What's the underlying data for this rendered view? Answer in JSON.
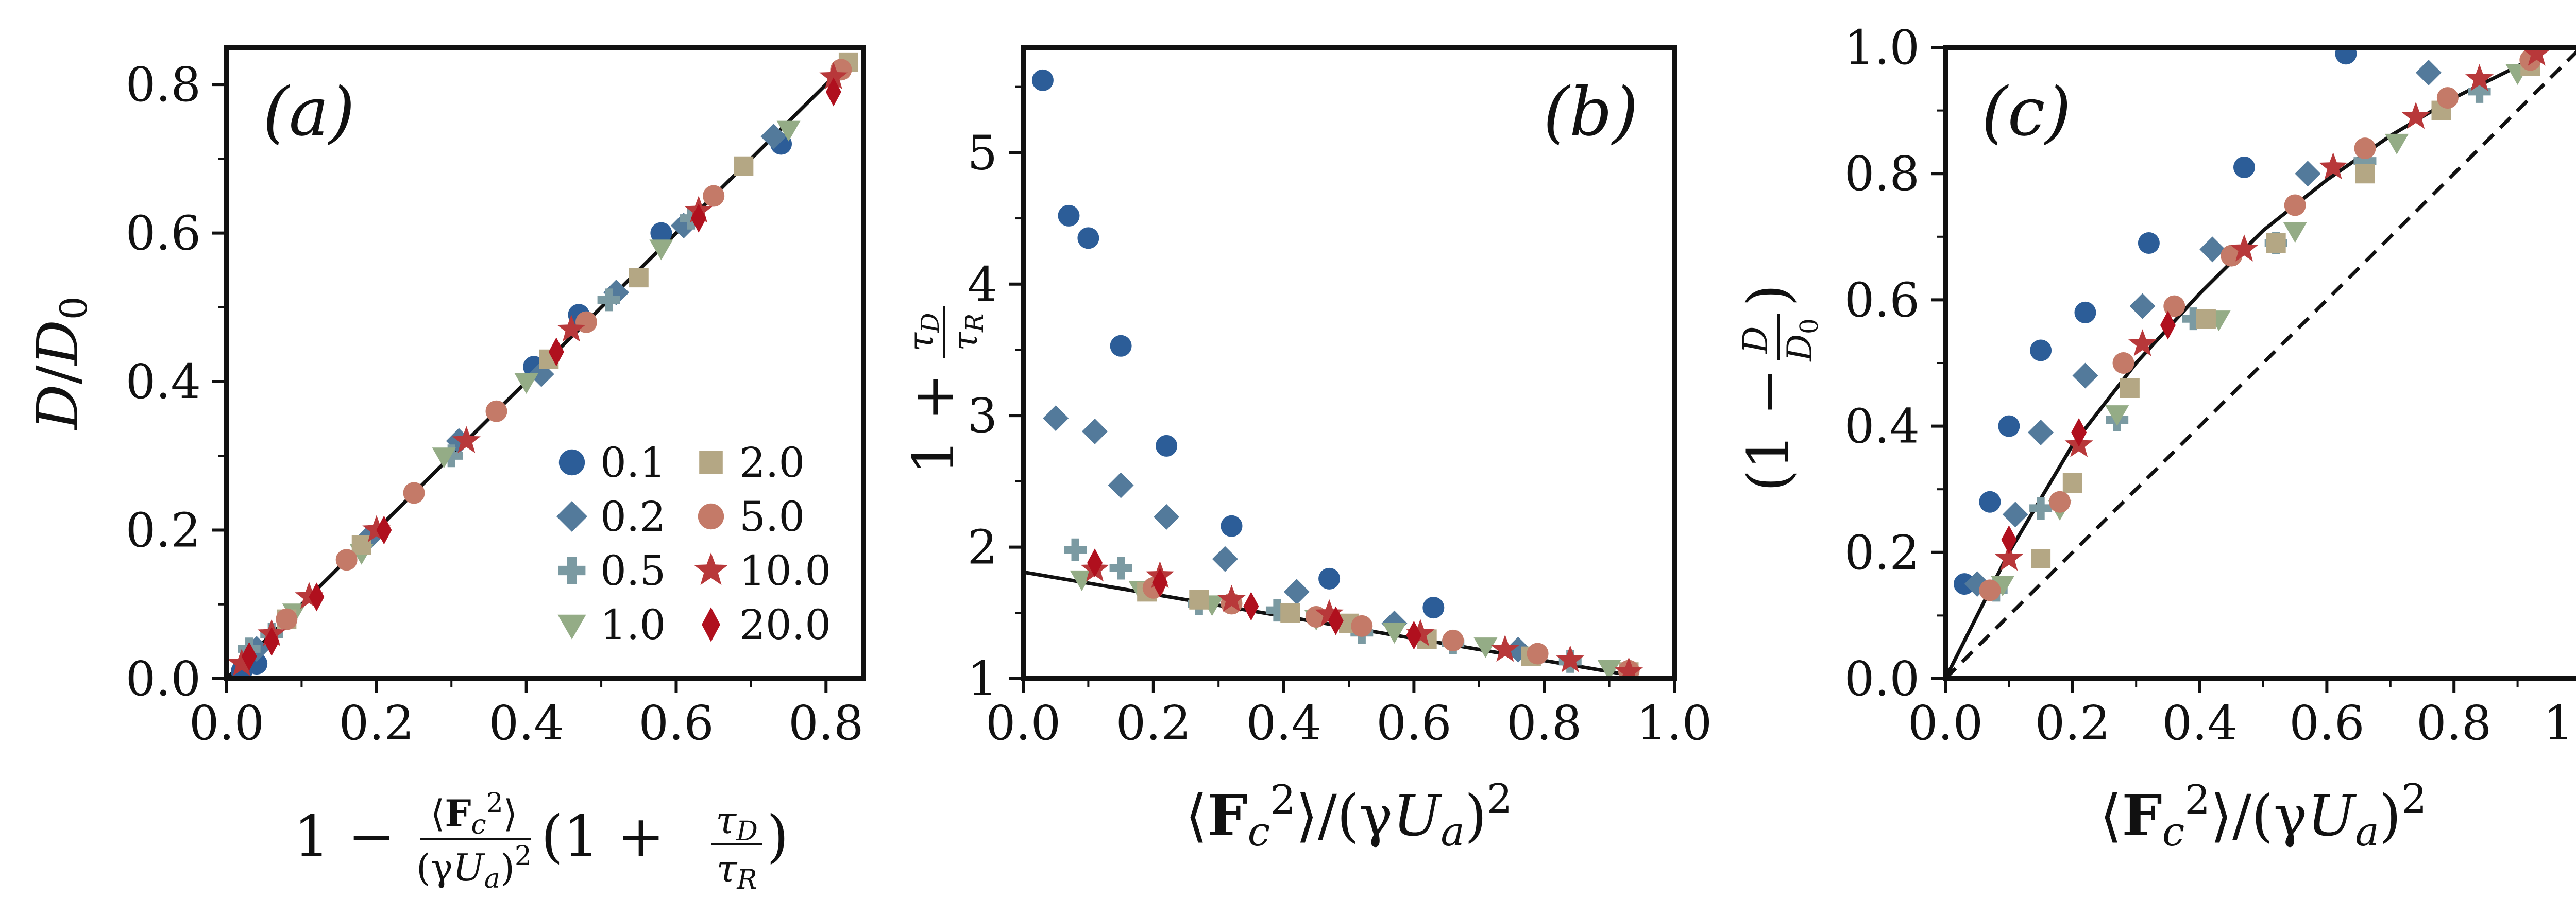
{
  "colors": {
    "0.1": "#2c5d98",
    "0.2": "#537a9b",
    "0.5": "#7b9aa2",
    "1.0": "#94ac86",
    "2.0": "#b4a784",
    "5.0": "#c47a68",
    "10.0": "#b8383a",
    "20.0": "#b0101e"
  },
  "markers": {
    "0.1": "circle",
    "0.2": "diamond",
    "0.5": "plus",
    "1.0": "triangle-down",
    "2.0": "square",
    "5.0": "circle",
    "10.0": "star",
    "20.0": "thin-diamond"
  },
  "legend": {
    "items": [
      {
        "key": "0.1",
        "label": "0.1"
      },
      {
        "key": "0.2",
        "label": "0.2"
      },
      {
        "key": "0.5",
        "label": "0.5"
      },
      {
        "key": "1.0",
        "label": "1.0"
      },
      {
        "key": "2.0",
        "label": "2.0"
      },
      {
        "key": "5.0",
        "label": "5.0"
      },
      {
        "key": "10.0",
        "label": "10.0"
      },
      {
        "key": "20.0",
        "label": "20.0"
      }
    ]
  },
  "chart_data": [
    {
      "type": "scatter",
      "panel_label": "(a)",
      "xlabel": "1 − ⟨F_c²⟩/(γU_a)² (1 + τ_D/τ_R)",
      "ylabel": "D/D₀",
      "xlim": [
        0.0,
        0.85
      ],
      "ylim": [
        0.0,
        0.85
      ],
      "xticks": [
        "0.0",
        "0.2",
        "0.4",
        "0.6",
        "0.8"
      ],
      "yticks": [
        "0.0",
        "0.2",
        "0.4",
        "0.6",
        "0.8"
      ],
      "lines": [
        {
          "style": "solid",
          "x": [
            0.0,
            0.83
          ],
          "y": [
            0.0,
            0.83
          ]
        }
      ],
      "legend_position": "lower-right",
      "series": [
        {
          "name": "0.1",
          "x": [
            0.02,
            0.04,
            0.41,
            0.47,
            0.58,
            0.74
          ],
          "y": [
            0.01,
            0.02,
            0.42,
            0.49,
            0.6,
            0.72
          ]
        },
        {
          "name": "0.2",
          "x": [
            0.04,
            0.19,
            0.31,
            0.42,
            0.52,
            0.61,
            0.73
          ],
          "y": [
            0.04,
            0.19,
            0.32,
            0.41,
            0.52,
            0.61,
            0.73
          ]
        },
        {
          "name": "0.5",
          "x": [
            0.03,
            0.06,
            0.3,
            0.51,
            0.62
          ],
          "y": [
            0.04,
            0.06,
            0.3,
            0.51,
            0.62
          ]
        },
        {
          "name": "1.0",
          "x": [
            0.09,
            0.18,
            0.29,
            0.4,
            0.58,
            0.75
          ],
          "y": [
            0.09,
            0.17,
            0.3,
            0.4,
            0.58,
            0.74
          ]
        },
        {
          "name": "2.0",
          "x": [
            0.08,
            0.18,
            0.43,
            0.55,
            0.69,
            0.83
          ],
          "y": [
            0.08,
            0.18,
            0.43,
            0.54,
            0.69,
            0.83
          ]
        },
        {
          "name": "5.0",
          "x": [
            0.08,
            0.16,
            0.25,
            0.36,
            0.48,
            0.65,
            0.82
          ],
          "y": [
            0.08,
            0.16,
            0.25,
            0.36,
            0.48,
            0.65,
            0.82
          ]
        },
        {
          "name": "10.0",
          "x": [
            0.02,
            0.06,
            0.11,
            0.2,
            0.32,
            0.46,
            0.63,
            0.81
          ],
          "y": [
            0.02,
            0.06,
            0.11,
            0.2,
            0.32,
            0.47,
            0.63,
            0.81
          ]
        },
        {
          "name": "20.0",
          "x": [
            0.03,
            0.06,
            0.12,
            0.21,
            0.44,
            0.63,
            0.81
          ],
          "y": [
            0.03,
            0.05,
            0.11,
            0.2,
            0.44,
            0.62,
            0.79
          ]
        }
      ]
    },
    {
      "type": "scatter",
      "panel_label": "(b)",
      "xlabel": "⟨F_c²⟩/(γU_a)²",
      "ylabel": "1 + τ_D/τ_R",
      "xlim": [
        0.0,
        1.0
      ],
      "ylim": [
        1.0,
        5.8
      ],
      "xticks": [
        "0.0",
        "0.2",
        "0.4",
        "0.6",
        "0.8",
        "1.0"
      ],
      "yticks": [
        "1",
        "2",
        "3",
        "4",
        "5"
      ],
      "lines": [
        {
          "style": "solid",
          "x": [
            0.0,
            0.94
          ],
          "y": [
            1.81,
            1.02
          ]
        }
      ],
      "series": [
        {
          "name": "0.1",
          "x": [
            0.03,
            0.07,
            0.1,
            0.15,
            0.22,
            0.32,
            0.47,
            0.63
          ],
          "y": [
            5.55,
            4.52,
            4.35,
            3.53,
            2.77,
            2.16,
            1.76,
            1.54
          ]
        },
        {
          "name": "0.2",
          "x": [
            0.05,
            0.11,
            0.15,
            0.22,
            0.31,
            0.42,
            0.57,
            0.76
          ],
          "y": [
            2.98,
            2.88,
            2.47,
            2.23,
            1.91,
            1.66,
            1.42,
            1.22
          ]
        },
        {
          "name": "0.5",
          "x": [
            0.08,
            0.15,
            0.27,
            0.39,
            0.52,
            0.66,
            0.84
          ],
          "y": [
            1.98,
            1.84,
            1.57,
            1.52,
            1.35,
            1.27,
            1.13
          ]
        },
        {
          "name": "1.0",
          "x": [
            0.09,
            0.18,
            0.29,
            0.45,
            0.57,
            0.71,
            0.9
          ],
          "y": [
            1.76,
            1.68,
            1.57,
            1.46,
            1.36,
            1.25,
            1.08
          ]
        },
        {
          "name": "2.0",
          "x": [
            0.19,
            0.27,
            0.41,
            0.5,
            0.62,
            0.78,
            0.93
          ],
          "y": [
            1.66,
            1.6,
            1.5,
            1.42,
            1.3,
            1.17,
            1.05
          ]
        },
        {
          "name": "5.0",
          "x": [
            0.2,
            0.32,
            0.45,
            0.52,
            0.66,
            0.79,
            0.93
          ],
          "y": [
            1.69,
            1.57,
            1.47,
            1.4,
            1.29,
            1.19,
            1.06
          ]
        },
        {
          "name": "10.0",
          "x": [
            0.11,
            0.21,
            0.32,
            0.47,
            0.61,
            0.74,
            0.84,
            0.93
          ],
          "y": [
            1.83,
            1.78,
            1.6,
            1.49,
            1.34,
            1.22,
            1.14,
            1.05
          ]
        },
        {
          "name": "20.0",
          "x": [
            0.11,
            0.21,
            0.35,
            0.48,
            0.6
          ],
          "y": [
            1.88,
            1.73,
            1.55,
            1.44,
            1.33
          ]
        }
      ]
    },
    {
      "type": "scatter",
      "panel_label": "(c)",
      "xlabel": "⟨F_c²⟩/(γU_a)²",
      "ylabel": "(1 − D/D₀)",
      "xlim": [
        0.0,
        1.0
      ],
      "ylim": [
        0.0,
        1.0
      ],
      "xticks": [
        "0.0",
        "0.2",
        "0.4",
        "0.6",
        "0.8",
        "1.0"
      ],
      "yticks": [
        "0.0",
        "0.2",
        "0.4",
        "0.6",
        "0.8",
        "1.0"
      ],
      "lines": [
        {
          "style": "solid",
          "x": [
            0.0,
            0.1,
            0.2,
            0.3,
            0.4,
            0.5,
            0.6,
            0.7,
            0.8,
            0.9,
            0.95
          ],
          "y": [
            0.0,
            0.2,
            0.37,
            0.5,
            0.61,
            0.71,
            0.79,
            0.86,
            0.92,
            0.97,
            1.0
          ]
        },
        {
          "style": "dashed",
          "x": [
            0.0,
            1.0
          ],
          "y": [
            0.0,
            1.0
          ]
        }
      ],
      "series": [
        {
          "name": "0.1",
          "x": [
            0.03,
            0.07,
            0.1,
            0.15,
            0.22,
            0.32,
            0.47,
            0.63
          ],
          "y": [
            0.15,
            0.28,
            0.4,
            0.52,
            0.58,
            0.69,
            0.81,
            0.99
          ]
        },
        {
          "name": "0.2",
          "x": [
            0.05,
            0.11,
            0.15,
            0.22,
            0.31,
            0.42,
            0.57,
            0.76
          ],
          "y": [
            0.15,
            0.26,
            0.39,
            0.48,
            0.59,
            0.68,
            0.8,
            0.96
          ]
        },
        {
          "name": "0.5",
          "x": [
            0.08,
            0.15,
            0.27,
            0.39,
            0.52,
            0.66,
            0.84
          ],
          "y": [
            0.14,
            0.27,
            0.41,
            0.57,
            0.69,
            0.82,
            0.93
          ]
        },
        {
          "name": "1.0",
          "x": [
            0.09,
            0.18,
            0.27,
            0.43,
            0.55,
            0.71,
            0.9
          ],
          "y": [
            0.15,
            0.27,
            0.42,
            0.57,
            0.71,
            0.85,
            0.96
          ]
        },
        {
          "name": "2.0",
          "x": [
            0.15,
            0.2,
            0.29,
            0.41,
            0.52,
            0.66,
            0.78,
            0.92
          ],
          "y": [
            0.19,
            0.31,
            0.46,
            0.57,
            0.69,
            0.8,
            0.9,
            0.97
          ]
        },
        {
          "name": "5.0",
          "x": [
            0.07,
            0.18,
            0.28,
            0.36,
            0.45,
            0.55,
            0.66,
            0.79,
            0.92
          ],
          "y": [
            0.14,
            0.28,
            0.5,
            0.59,
            0.67,
            0.75,
            0.84,
            0.92,
            0.98
          ]
        },
        {
          "name": "10.0",
          "x": [
            0.1,
            0.21,
            0.31,
            0.47,
            0.61,
            0.74,
            0.84,
            0.93
          ],
          "y": [
            0.19,
            0.37,
            0.53,
            0.68,
            0.81,
            0.89,
            0.95,
            0.99
          ]
        },
        {
          "name": "20.0",
          "x": [
            0.1,
            0.21,
            0.35
          ],
          "y": [
            0.22,
            0.39,
            0.56
          ]
        }
      ]
    }
  ]
}
